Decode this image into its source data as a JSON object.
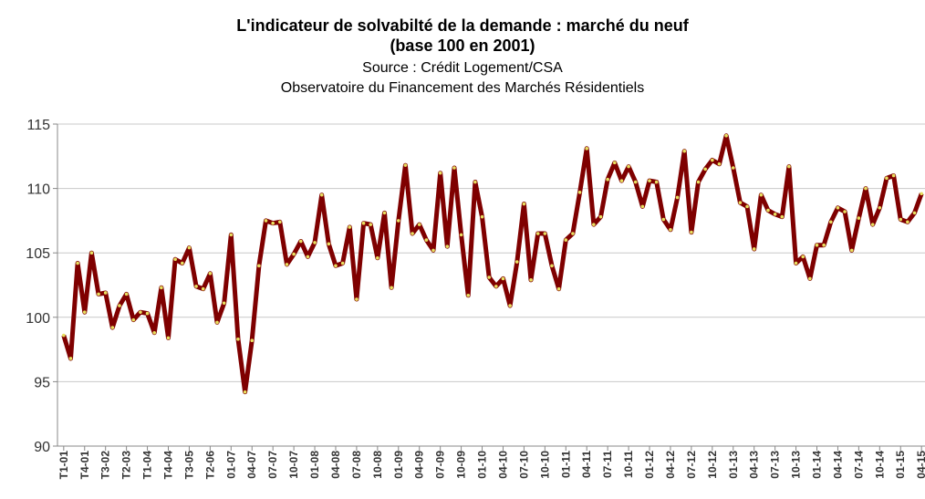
{
  "chart_data": {
    "type": "line",
    "title": [
      "L'indicateur de solvabilté de la demande : marché du neuf",
      "(base 100 en 2001)"
    ],
    "subtitle": [
      "Source : Crédit Logement/CSA",
      "Observatoire du Financement des Marchés Résidentiels"
    ],
    "categories": [
      "T1-01",
      null,
      null,
      "T4-01",
      null,
      null,
      "T3-02",
      null,
      null,
      "T2-03",
      null,
      null,
      "T1-04",
      null,
      null,
      "T4-04",
      null,
      null,
      "T3-05",
      null,
      null,
      "T2-06",
      null,
      null,
      "01-07",
      null,
      null,
      "04-07",
      null,
      null,
      "07-07",
      null,
      null,
      "10-07",
      null,
      null,
      "01-08",
      null,
      null,
      "04-08",
      null,
      null,
      "07-08",
      null,
      null,
      "10-08",
      null,
      null,
      "01-09",
      null,
      null,
      "04-09",
      null,
      null,
      "07-09",
      null,
      null,
      "10-09",
      null,
      null,
      "01-10",
      null,
      null,
      "04-10",
      null,
      null,
      "07-10",
      null,
      null,
      "10-10",
      null,
      null,
      "01-11",
      null,
      null,
      "04-11",
      null,
      null,
      "07-11",
      null,
      null,
      "10-11",
      null,
      null,
      "01-12",
      null,
      null,
      "04-12",
      null,
      null,
      "07-12",
      null,
      null,
      "10-12",
      null,
      null,
      "01-13",
      null,
      null,
      "04-13",
      null,
      null,
      "07-13",
      null,
      null,
      "10-13",
      null,
      null,
      "01-14",
      null,
      null,
      "04-14",
      null,
      null,
      "07-14",
      null,
      null,
      "10-14",
      null,
      null,
      "01-15",
      null,
      null,
      "04-15"
    ],
    "series": [
      {
        "color": "#7f0000",
        "marker_color": "#e8e060",
        "values": [
          98.6,
          96.8,
          104.2,
          100.4,
          105.0,
          101.8,
          101.9,
          99.2,
          100.9,
          101.8,
          99.8,
          100.4,
          100.3,
          98.8,
          102.3,
          98.4,
          104.5,
          104.2,
          105.4,
          102.4,
          102.2,
          103.4,
          99.6,
          101.1,
          106.4,
          98.3,
          94.2,
          98.2,
          104.0,
          107.5,
          107.3,
          107.4,
          104.1,
          104.9,
          105.9,
          104.7,
          105.8,
          109.5,
          105.7,
          104.0,
          104.2,
          107.0,
          101.4,
          107.3,
          107.2,
          104.6,
          108.1,
          102.3,
          107.5,
          111.8,
          106.5,
          107.2,
          106.0,
          105.2,
          111.2,
          105.5,
          111.6,
          106.4,
          101.7,
          110.5,
          107.8,
          103.1,
          102.4,
          103.0,
          100.9,
          104.3,
          108.8,
          102.9,
          106.5,
          106.5,
          104.0,
          102.2,
          106.0,
          106.5,
          109.7,
          113.1,
          107.2,
          107.8,
          110.7,
          112.0,
          110.6,
          111.7,
          110.5,
          108.6,
          110.6,
          110.5,
          107.6,
          106.8,
          109.3,
          112.9,
          106.6,
          110.5,
          111.5,
          112.2,
          111.9,
          114.1,
          111.6,
          108.9,
          108.6,
          105.3,
          109.5,
          108.3,
          108.0,
          107.8,
          111.7,
          104.2,
          104.7,
          103.0,
          105.6,
          105.6,
          107.4,
          108.5,
          108.2,
          105.2,
          107.7,
          110.0,
          107.2,
          108.5,
          110.8,
          111.0,
          107.6,
          107.4,
          108.1,
          109.6
        ]
      }
    ],
    "ylim": [
      90,
      115
    ],
    "yticks": [
      90,
      95,
      100,
      105,
      110,
      115
    ],
    "grid": true
  }
}
